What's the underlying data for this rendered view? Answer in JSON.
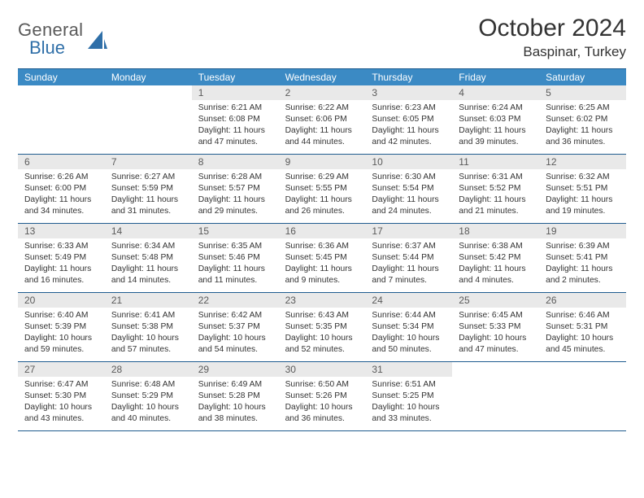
{
  "header": {
    "logo_general": "General",
    "logo_blue": "Blue",
    "month_title": "October 2024",
    "location": "Baspinar, Turkey"
  },
  "style": {
    "header_bg": "#3b8ac4",
    "header_text": "#ffffff",
    "daynum_bg": "#e9e9e9",
    "daynum_text": "#5a5a5a",
    "border_color": "#1f5c8f",
    "body_text": "#333333",
    "logo_gray": "#5a5a5a",
    "logo_blue": "#2f6fa8",
    "month_fontsize": 30,
    "location_fontsize": 17,
    "dayhead_fontsize": 12,
    "body_fontsize": 10.3
  },
  "day_labels": [
    "Sunday",
    "Monday",
    "Tuesday",
    "Wednesday",
    "Thursday",
    "Friday",
    "Saturday"
  ],
  "weeks": [
    [
      {
        "empty": true
      },
      {
        "empty": true
      },
      {
        "n": "1",
        "sr": "Sunrise: 6:21 AM",
        "ss": "Sunset: 6:08 PM",
        "dl1": "Daylight: 11 hours",
        "dl2": "and 47 minutes."
      },
      {
        "n": "2",
        "sr": "Sunrise: 6:22 AM",
        "ss": "Sunset: 6:06 PM",
        "dl1": "Daylight: 11 hours",
        "dl2": "and 44 minutes."
      },
      {
        "n": "3",
        "sr": "Sunrise: 6:23 AM",
        "ss": "Sunset: 6:05 PM",
        "dl1": "Daylight: 11 hours",
        "dl2": "and 42 minutes."
      },
      {
        "n": "4",
        "sr": "Sunrise: 6:24 AM",
        "ss": "Sunset: 6:03 PM",
        "dl1": "Daylight: 11 hours",
        "dl2": "and 39 minutes."
      },
      {
        "n": "5",
        "sr": "Sunrise: 6:25 AM",
        "ss": "Sunset: 6:02 PM",
        "dl1": "Daylight: 11 hours",
        "dl2": "and 36 minutes."
      }
    ],
    [
      {
        "n": "6",
        "sr": "Sunrise: 6:26 AM",
        "ss": "Sunset: 6:00 PM",
        "dl1": "Daylight: 11 hours",
        "dl2": "and 34 minutes."
      },
      {
        "n": "7",
        "sr": "Sunrise: 6:27 AM",
        "ss": "Sunset: 5:59 PM",
        "dl1": "Daylight: 11 hours",
        "dl2": "and 31 minutes."
      },
      {
        "n": "8",
        "sr": "Sunrise: 6:28 AM",
        "ss": "Sunset: 5:57 PM",
        "dl1": "Daylight: 11 hours",
        "dl2": "and 29 minutes."
      },
      {
        "n": "9",
        "sr": "Sunrise: 6:29 AM",
        "ss": "Sunset: 5:55 PM",
        "dl1": "Daylight: 11 hours",
        "dl2": "and 26 minutes."
      },
      {
        "n": "10",
        "sr": "Sunrise: 6:30 AM",
        "ss": "Sunset: 5:54 PM",
        "dl1": "Daylight: 11 hours",
        "dl2": "and 24 minutes."
      },
      {
        "n": "11",
        "sr": "Sunrise: 6:31 AM",
        "ss": "Sunset: 5:52 PM",
        "dl1": "Daylight: 11 hours",
        "dl2": "and 21 minutes."
      },
      {
        "n": "12",
        "sr": "Sunrise: 6:32 AM",
        "ss": "Sunset: 5:51 PM",
        "dl1": "Daylight: 11 hours",
        "dl2": "and 19 minutes."
      }
    ],
    [
      {
        "n": "13",
        "sr": "Sunrise: 6:33 AM",
        "ss": "Sunset: 5:49 PM",
        "dl1": "Daylight: 11 hours",
        "dl2": "and 16 minutes."
      },
      {
        "n": "14",
        "sr": "Sunrise: 6:34 AM",
        "ss": "Sunset: 5:48 PM",
        "dl1": "Daylight: 11 hours",
        "dl2": "and 14 minutes."
      },
      {
        "n": "15",
        "sr": "Sunrise: 6:35 AM",
        "ss": "Sunset: 5:46 PM",
        "dl1": "Daylight: 11 hours",
        "dl2": "and 11 minutes."
      },
      {
        "n": "16",
        "sr": "Sunrise: 6:36 AM",
        "ss": "Sunset: 5:45 PM",
        "dl1": "Daylight: 11 hours",
        "dl2": "and 9 minutes."
      },
      {
        "n": "17",
        "sr": "Sunrise: 6:37 AM",
        "ss": "Sunset: 5:44 PM",
        "dl1": "Daylight: 11 hours",
        "dl2": "and 7 minutes."
      },
      {
        "n": "18",
        "sr": "Sunrise: 6:38 AM",
        "ss": "Sunset: 5:42 PM",
        "dl1": "Daylight: 11 hours",
        "dl2": "and 4 minutes."
      },
      {
        "n": "19",
        "sr": "Sunrise: 6:39 AM",
        "ss": "Sunset: 5:41 PM",
        "dl1": "Daylight: 11 hours",
        "dl2": "and 2 minutes."
      }
    ],
    [
      {
        "n": "20",
        "sr": "Sunrise: 6:40 AM",
        "ss": "Sunset: 5:39 PM",
        "dl1": "Daylight: 10 hours",
        "dl2": "and 59 minutes."
      },
      {
        "n": "21",
        "sr": "Sunrise: 6:41 AM",
        "ss": "Sunset: 5:38 PM",
        "dl1": "Daylight: 10 hours",
        "dl2": "and 57 minutes."
      },
      {
        "n": "22",
        "sr": "Sunrise: 6:42 AM",
        "ss": "Sunset: 5:37 PM",
        "dl1": "Daylight: 10 hours",
        "dl2": "and 54 minutes."
      },
      {
        "n": "23",
        "sr": "Sunrise: 6:43 AM",
        "ss": "Sunset: 5:35 PM",
        "dl1": "Daylight: 10 hours",
        "dl2": "and 52 minutes."
      },
      {
        "n": "24",
        "sr": "Sunrise: 6:44 AM",
        "ss": "Sunset: 5:34 PM",
        "dl1": "Daylight: 10 hours",
        "dl2": "and 50 minutes."
      },
      {
        "n": "25",
        "sr": "Sunrise: 6:45 AM",
        "ss": "Sunset: 5:33 PM",
        "dl1": "Daylight: 10 hours",
        "dl2": "and 47 minutes."
      },
      {
        "n": "26",
        "sr": "Sunrise: 6:46 AM",
        "ss": "Sunset: 5:31 PM",
        "dl1": "Daylight: 10 hours",
        "dl2": "and 45 minutes."
      }
    ],
    [
      {
        "n": "27",
        "sr": "Sunrise: 6:47 AM",
        "ss": "Sunset: 5:30 PM",
        "dl1": "Daylight: 10 hours",
        "dl2": "and 43 minutes."
      },
      {
        "n": "28",
        "sr": "Sunrise: 6:48 AM",
        "ss": "Sunset: 5:29 PM",
        "dl1": "Daylight: 10 hours",
        "dl2": "and 40 minutes."
      },
      {
        "n": "29",
        "sr": "Sunrise: 6:49 AM",
        "ss": "Sunset: 5:28 PM",
        "dl1": "Daylight: 10 hours",
        "dl2": "and 38 minutes."
      },
      {
        "n": "30",
        "sr": "Sunrise: 6:50 AM",
        "ss": "Sunset: 5:26 PM",
        "dl1": "Daylight: 10 hours",
        "dl2": "and 36 minutes."
      },
      {
        "n": "31",
        "sr": "Sunrise: 6:51 AM",
        "ss": "Sunset: 5:25 PM",
        "dl1": "Daylight: 10 hours",
        "dl2": "and 33 minutes."
      },
      {
        "empty": true
      },
      {
        "empty": true
      }
    ]
  ]
}
